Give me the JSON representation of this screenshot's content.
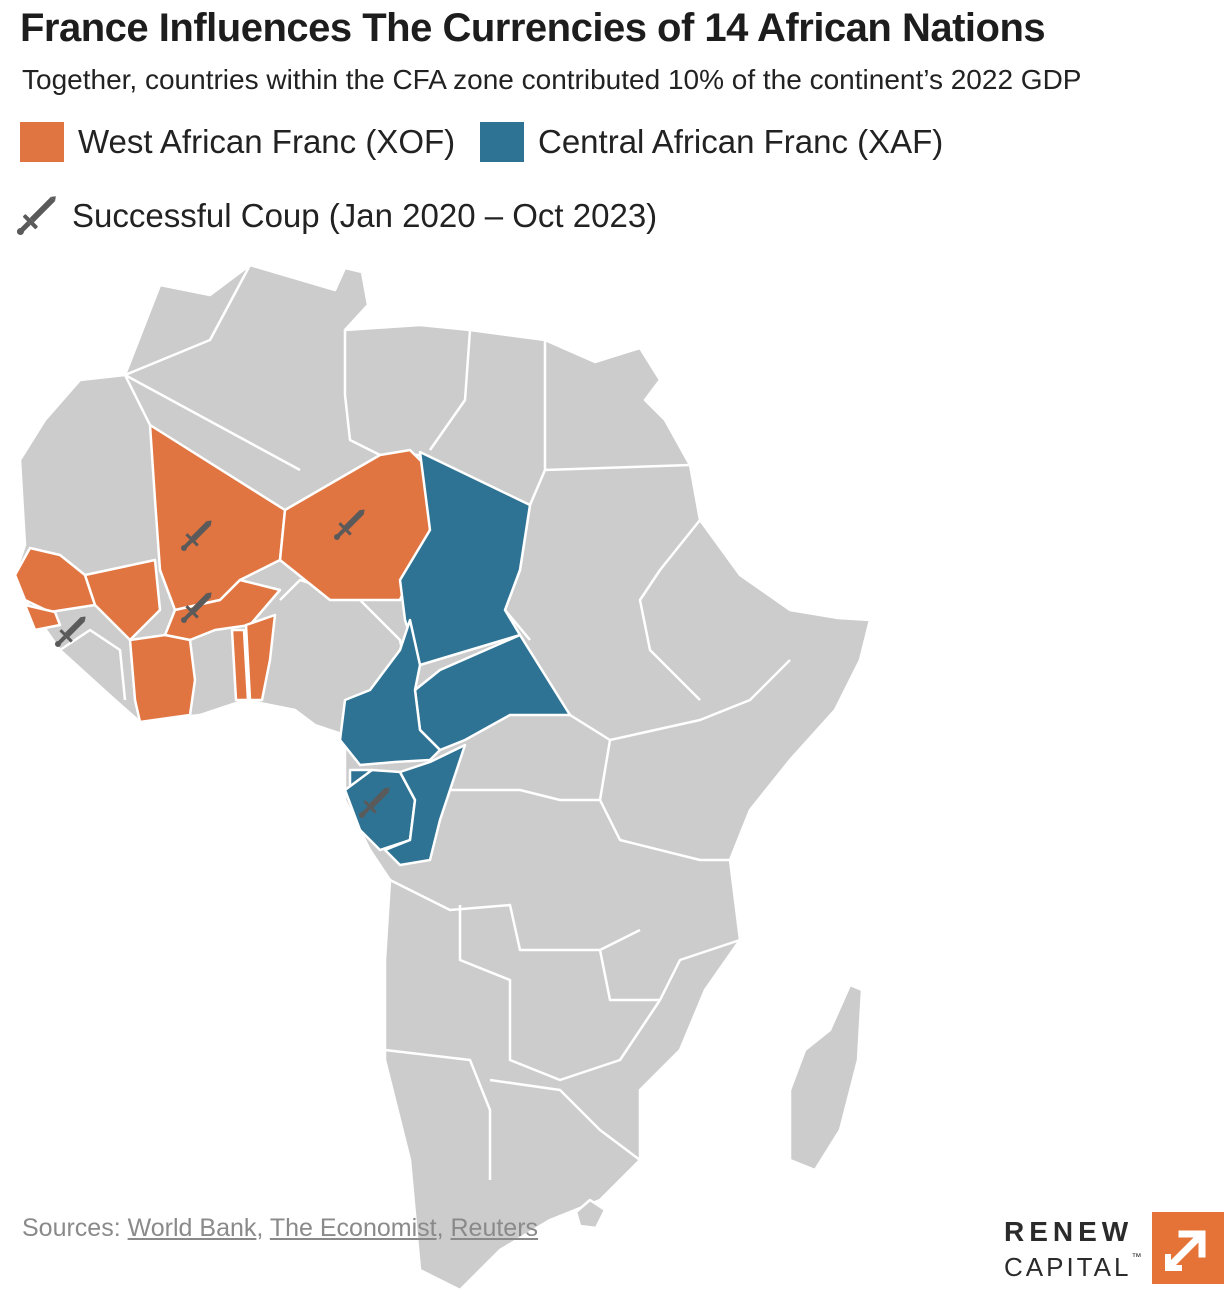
{
  "header": {
    "title": "France Influences The Currencies of 14 African Nations",
    "subtitle": "Together, countries within the CFA zone contributed 10% of the continent’s 2022 GDP"
  },
  "legend": {
    "xof": {
      "label": "West African Franc (XOF)",
      "color": "#e07542"
    },
    "xaf": {
      "label": "Central African Franc (XAF)",
      "color": "#2e7394"
    },
    "coup": {
      "label": "Successful Coup (Jan 2020 – Oct 2023)",
      "icon": "sword-icon",
      "color": "#5a5a5a"
    }
  },
  "map": {
    "base_color": "#cccccc",
    "border_color": "#ffffff",
    "xof_countries": [
      "Senegal",
      "Guinea-Bissau",
      "Mali",
      "Niger",
      "Burkina Faso",
      "Côte d’Ivoire",
      "Togo",
      "Benin"
    ],
    "xaf_countries": [
      "Chad",
      "Central African Republic",
      "Cameroon",
      "Republic of the Congo",
      "Gabon",
      "Equatorial Guinea"
    ],
    "coup_countries": [
      "Mali",
      "Niger",
      "Burkina Faso",
      "Guinea",
      "Gabon"
    ]
  },
  "sources": {
    "prefix": "Sources:",
    "links": [
      "World Bank",
      "The Economist",
      "Reuters"
    ]
  },
  "logo": {
    "line1": "RENEW",
    "line2": "CAPITAL",
    "mark": "™",
    "color": "#e57338"
  }
}
